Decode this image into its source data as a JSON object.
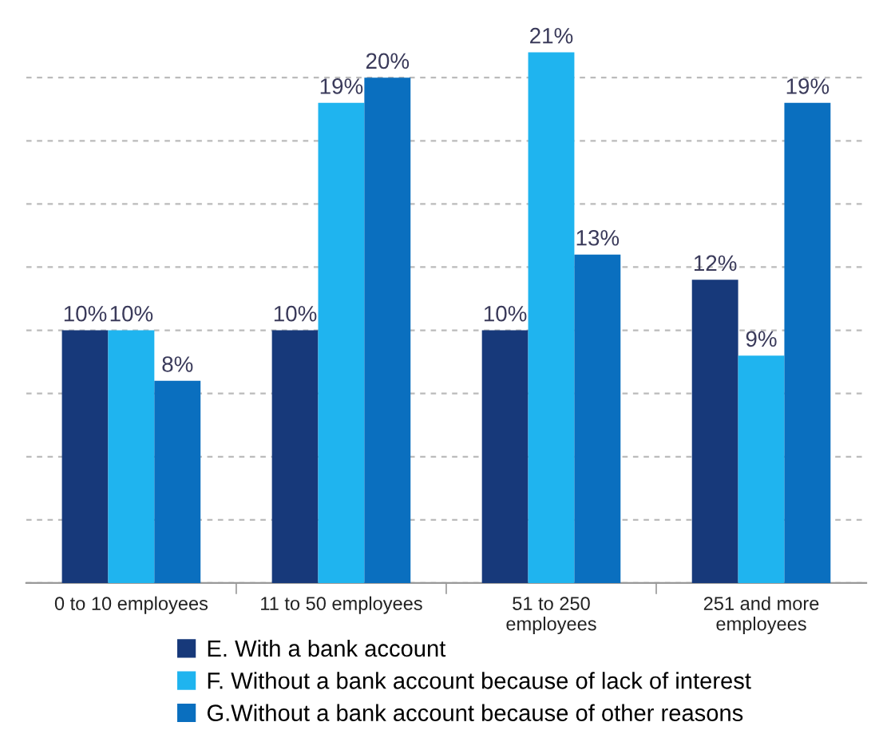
{
  "chart_data": {
    "type": "bar",
    "categories": [
      "0 to 10 employees",
      "11 to 50 employees",
      "51 to 250 employees",
      "251 and more employees"
    ],
    "series": [
      {
        "name": "E. With a bank account",
        "color": "#17397a",
        "values": [
          10,
          10,
          10,
          12
        ],
        "value_labels": [
          "10%",
          "10%",
          "10%",
          "12%"
        ]
      },
      {
        "name": "F. Without a bank account because of lack of interest",
        "color": "#1fb4ef",
        "values": [
          10,
          19,
          21,
          9
        ],
        "value_labels": [
          "10%",
          "19%",
          "21%",
          "9%"
        ]
      },
      {
        "name": "G.Without a bank account because of other reasons",
        "color": "#0a6fbf",
        "values": [
          8,
          20,
          13,
          19
        ],
        "value_labels": [
          "8%",
          "20%",
          "13%",
          "19%"
        ]
      }
    ],
    "grid": "y",
    "legend": "bottom",
    "tick_labels": "x"
  }
}
